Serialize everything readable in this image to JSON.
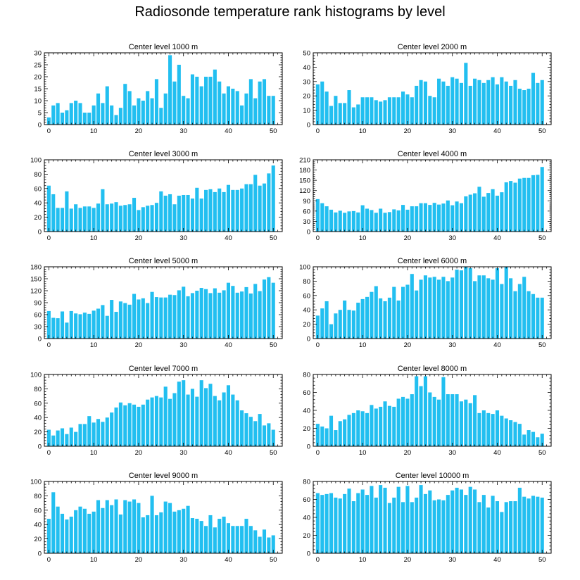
{
  "title": "Radiosonde temperature rank histograms by level",
  "colors": {
    "bar": "#22bff0",
    "axis": "#000000"
  },
  "chart_data": [
    {
      "type": "bar",
      "title": "Center level 1000 m",
      "xlim": [
        -1,
        52
      ],
      "xticks": [
        0,
        10,
        20,
        30,
        40,
        50
      ],
      "ylim": [
        0,
        30
      ],
      "yticks": [
        0,
        5,
        10,
        15,
        20,
        25,
        30
      ],
      "values": [
        3,
        8,
        9,
        5,
        6,
        9,
        10,
        9,
        5,
        5,
        8,
        13,
        9,
        16,
        8,
        4,
        7,
        17,
        14,
        8,
        11,
        10,
        14,
        11,
        19,
        7,
        13,
        29,
        18,
        25,
        12,
        11,
        21,
        20,
        16,
        20,
        20,
        23,
        18,
        13,
        16,
        15,
        14,
        8,
        13,
        19,
        11,
        18,
        19,
        12,
        12
      ]
    },
    {
      "type": "bar",
      "title": "Center level 2000 m",
      "xlim": [
        -1,
        52
      ],
      "xticks": [
        0,
        10,
        20,
        30,
        40,
        50
      ],
      "ylim": [
        0,
        50
      ],
      "yticks": [
        0,
        10,
        20,
        30,
        40,
        50
      ],
      "values": [
        28,
        30,
        23,
        13,
        20,
        15,
        15,
        24,
        12,
        14,
        19,
        19,
        19,
        17,
        16,
        17,
        19,
        19,
        19,
        23,
        21,
        19,
        27,
        31,
        30,
        20,
        19,
        32,
        30,
        27,
        33,
        32,
        29,
        43,
        27,
        32,
        31,
        29,
        31,
        33,
        28,
        33,
        30,
        27,
        31,
        25,
        24,
        25,
        36,
        29,
        31
      ]
    },
    {
      "type": "bar",
      "title": "Center level 3000 m",
      "xlim": [
        -1,
        52
      ],
      "xticks": [
        0,
        10,
        20,
        30,
        40,
        50
      ],
      "ylim": [
        0,
        100
      ],
      "yticks": [
        0,
        20,
        40,
        60,
        80,
        100
      ],
      "values": [
        64,
        52,
        33,
        33,
        56,
        32,
        38,
        33,
        35,
        35,
        33,
        39,
        59,
        38,
        39,
        41,
        36,
        37,
        38,
        47,
        30,
        34,
        36,
        37,
        40,
        56,
        50,
        52,
        38,
        50,
        51,
        51,
        46,
        61,
        46,
        58,
        59,
        55,
        60,
        55,
        65,
        58,
        58,
        60,
        66,
        66,
        79,
        64,
        67,
        81,
        92
      ]
    },
    {
      "type": "bar",
      "title": "Center level 4000 m",
      "xlim": [
        -1,
        52
      ],
      "xticks": [
        0,
        10,
        20,
        30,
        40,
        50
      ],
      "ylim": [
        0,
        210
      ],
      "yticks": [
        0,
        30,
        60,
        90,
        120,
        150,
        180,
        210
      ],
      "values": [
        95,
        83,
        74,
        64,
        56,
        61,
        55,
        59,
        60,
        56,
        77,
        67,
        63,
        55,
        67,
        55,
        57,
        65,
        62,
        78,
        64,
        74,
        74,
        83,
        83,
        78,
        84,
        79,
        82,
        91,
        77,
        88,
        83,
        103,
        108,
        112,
        131,
        102,
        113,
        124,
        105,
        115,
        144,
        148,
        143,
        155,
        157,
        157,
        165,
        166,
        189
      ]
    },
    {
      "type": "bar",
      "title": "Center level 5000 m",
      "xlim": [
        -1,
        52
      ],
      "xticks": [
        0,
        10,
        20,
        30,
        40,
        50
      ],
      "ylim": [
        0,
        180
      ],
      "yticks": [
        0,
        30,
        60,
        90,
        120,
        150,
        180
      ],
      "values": [
        69,
        52,
        51,
        68,
        40,
        69,
        63,
        61,
        65,
        62,
        70,
        75,
        84,
        57,
        97,
        67,
        93,
        89,
        85,
        112,
        98,
        101,
        89,
        117,
        104,
        103,
        103,
        110,
        109,
        121,
        130,
        106,
        114,
        120,
        127,
        124,
        114,
        126,
        115,
        121,
        140,
        132,
        115,
        118,
        129,
        113,
        137,
        119,
        148,
        154,
        140
      ]
    },
    {
      "type": "bar",
      "title": "Center level 6000 m",
      "xlim": [
        -1,
        52
      ],
      "xticks": [
        0,
        10,
        20,
        30,
        40,
        50
      ],
      "ylim": [
        0,
        100
      ],
      "yticks": [
        0,
        20,
        40,
        60,
        80,
        100
      ],
      "values": [
        32,
        42,
        52,
        20,
        35,
        40,
        53,
        40,
        39,
        50,
        55,
        58,
        65,
        73,
        56,
        52,
        57,
        72,
        53,
        72,
        75,
        90,
        67,
        82,
        88,
        85,
        86,
        82,
        86,
        80,
        85,
        96,
        95,
        100,
        98,
        80,
        88,
        88,
        84,
        82,
        98,
        76,
        100,
        84,
        66,
        76,
        86,
        66,
        62,
        57,
        57
      ]
    },
    {
      "type": "bar",
      "title": "Center level 7000 m",
      "xlim": [
        -1,
        52
      ],
      "xticks": [
        0,
        10,
        20,
        30,
        40,
        50
      ],
      "ylim": [
        0,
        100
      ],
      "yticks": [
        0,
        20,
        40,
        60,
        80,
        100
      ],
      "values": [
        23,
        15,
        22,
        25,
        17,
        26,
        20,
        31,
        31,
        42,
        33,
        38,
        34,
        40,
        47,
        54,
        61,
        57,
        60,
        58,
        55,
        58,
        65,
        68,
        70,
        68,
        83,
        66,
        74,
        90,
        92,
        72,
        80,
        69,
        92,
        81,
        87,
        70,
        64,
        75,
        85,
        72,
        64,
        50,
        46,
        41,
        35,
        45,
        29,
        32,
        23
      ]
    },
    {
      "type": "bar",
      "title": "Center level 8000 m",
      "xlim": [
        -1,
        52
      ],
      "xticks": [
        0,
        10,
        20,
        30,
        40,
        50
      ],
      "ylim": [
        0,
        80
      ],
      "yticks": [
        0,
        20,
        40,
        60,
        80
      ],
      "values": [
        25,
        22,
        20,
        34,
        18,
        28,
        30,
        35,
        37,
        40,
        39,
        37,
        46,
        42,
        44,
        50,
        45,
        44,
        53,
        55,
        53,
        58,
        78,
        67,
        78,
        60,
        55,
        52,
        77,
        58,
        58,
        58,
        50,
        52,
        48,
        57,
        37,
        40,
        37,
        36,
        40,
        34,
        31,
        29,
        27,
        25,
        13,
        18,
        16,
        10,
        14
      ]
    },
    {
      "type": "bar",
      "title": "Center level 9000 m",
      "xlim": [
        -1,
        52
      ],
      "xticks": [
        0,
        10,
        20,
        30,
        40,
        50
      ],
      "ylim": [
        0,
        100
      ],
      "yticks": [
        0,
        20,
        40,
        60,
        80,
        100
      ],
      "values": [
        48,
        85,
        65,
        55,
        47,
        51,
        60,
        65,
        62,
        55,
        58,
        74,
        63,
        74,
        67,
        75,
        54,
        74,
        72,
        75,
        70,
        50,
        53,
        80,
        53,
        57,
        72,
        70,
        58,
        60,
        62,
        66,
        49,
        48,
        45,
        38,
        53,
        36,
        48,
        51,
        42,
        38,
        38,
        38,
        48,
        38,
        32,
        23,
        33,
        22,
        25
      ]
    },
    {
      "type": "bar",
      "title": "Center level 10000 m",
      "xlim": [
        -1,
        52
      ],
      "xticks": [
        0,
        10,
        20,
        30,
        40,
        50
      ],
      "ylim": [
        0,
        80
      ],
      "yticks": [
        0,
        20,
        40,
        60,
        80
      ],
      "values": [
        67,
        65,
        66,
        67,
        62,
        61,
        66,
        72,
        58,
        67,
        71,
        65,
        75,
        62,
        76,
        73,
        56,
        62,
        74,
        57,
        75,
        57,
        62,
        76,
        66,
        70,
        59,
        60,
        59,
        65,
        70,
        73,
        71,
        65,
        74,
        71,
        57,
        65,
        51,
        64,
        58,
        46,
        57,
        58,
        58,
        73,
        63,
        61,
        64,
        63,
        62
      ]
    }
  ]
}
